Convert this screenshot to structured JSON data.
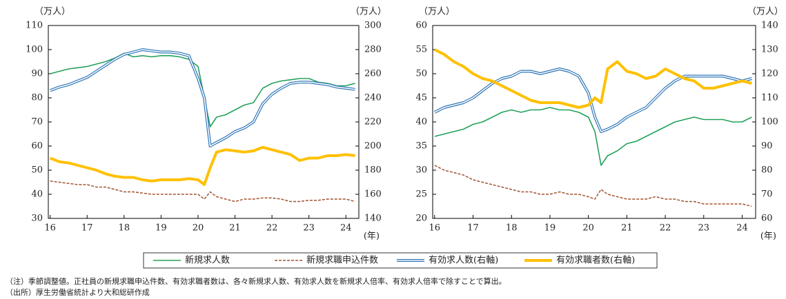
{
  "chart_data": [
    {
      "type": "line",
      "y_unit": "（万人）",
      "y2_unit": "（万人）",
      "x_unit": "(年)",
      "x": [
        16,
        16.25,
        16.5,
        16.75,
        17,
        17.25,
        17.5,
        17.75,
        18,
        18.25,
        18.5,
        18.75,
        19,
        19.25,
        19.5,
        19.75,
        20,
        20.17,
        20.33,
        20.5,
        20.75,
        21,
        21.25,
        21.5,
        21.75,
        22,
        22.25,
        22.5,
        22.75,
        23,
        23.25,
        23.5,
        23.75,
        24,
        24.25
      ],
      "xlim": [
        15.95,
        24.35
      ],
      "xticks": [
        16,
        17,
        18,
        19,
        20,
        21,
        22,
        23,
        24
      ],
      "ylim": [
        30,
        110
      ],
      "yticks": [
        30,
        40,
        50,
        60,
        70,
        80,
        90,
        100,
        110
      ],
      "y2lim": [
        140,
        300
      ],
      "y2ticks": [
        140,
        160,
        180,
        200,
        220,
        240,
        260,
        280,
        300
      ],
      "series": [
        {
          "name": "新規求人数",
          "color": "#23a05a",
          "line_style": "solid",
          "values": [
            90,
            91,
            92,
            92.5,
            93,
            94,
            95,
            96.5,
            98.5,
            97,
            97.5,
            97,
            97.5,
            97.5,
            97,
            96,
            93,
            80,
            68,
            72,
            73,
            75,
            77,
            78,
            84,
            86,
            87,
            87.5,
            88,
            88,
            86.5,
            86,
            85,
            85,
            86
          ]
        },
        {
          "name": "新規求職申込件数",
          "color": "#a0522d",
          "line_style": "dashed",
          "values": [
            45.5,
            45,
            44.5,
            44,
            44,
            43,
            43,
            42,
            41,
            41,
            40.5,
            40,
            40,
            40,
            40,
            40,
            40,
            38,
            41,
            39,
            38,
            37,
            38,
            38,
            38.5,
            38.5,
            38,
            37,
            37,
            37.5,
            37.5,
            38,
            38,
            38,
            37
          ]
        },
        {
          "name": "有効求人数(右軸)",
          "color": "#2e75b6",
          "line_style": "double",
          "axis": "y2",
          "values": [
            246,
            249,
            251,
            254,
            257,
            262,
            267,
            272,
            276,
            278,
            280,
            279,
            278,
            278,
            277,
            275,
            256,
            240,
            200,
            203,
            207,
            212,
            215,
            220,
            235,
            243,
            248,
            252,
            253,
            253,
            252,
            251,
            249,
            248,
            247
          ]
        },
        {
          "name": "有効求職者数(右軸)",
          "color": "#ffc000",
          "line_style": "thick",
          "axis": "y2",
          "values": [
            190,
            187,
            186,
            184,
            182,
            180,
            177,
            175,
            174,
            174,
            172,
            171,
            172,
            172,
            172,
            173,
            172,
            168,
            182,
            195,
            197,
            196,
            195,
            196,
            199,
            197,
            195,
            193,
            188,
            190,
            190,
            192,
            192,
            193,
            192
          ]
        }
      ]
    },
    {
      "type": "line",
      "y_unit": "（万人）",
      "y2_unit": "（万人）",
      "x_unit": "(年)",
      "x": [
        16,
        16.25,
        16.5,
        16.75,
        17,
        17.25,
        17.5,
        17.75,
        18,
        18.25,
        18.5,
        18.75,
        19,
        19.25,
        19.5,
        19.75,
        20,
        20.17,
        20.33,
        20.5,
        20.75,
        21,
        21.25,
        21.5,
        21.75,
        22,
        22.25,
        22.5,
        22.75,
        23,
        23.25,
        23.5,
        23.75,
        24,
        24.25
      ],
      "xlim": [
        15.95,
        24.35
      ],
      "xticks": [
        16,
        17,
        18,
        19,
        20,
        21,
        22,
        23,
        24
      ],
      "ylim": [
        20,
        60
      ],
      "yticks": [
        20,
        25,
        30,
        35,
        40,
        45,
        50,
        55,
        60
      ],
      "y2lim": [
        60,
        140
      ],
      "y2ticks": [
        60,
        70,
        80,
        90,
        100,
        110,
        120,
        130,
        140
      ],
      "series": [
        {
          "color": "#23a05a",
          "line_style": "solid",
          "values": [
            37,
            37.5,
            38,
            38.5,
            39.5,
            40,
            41,
            42,
            42.5,
            42,
            42.5,
            42.5,
            43,
            42.5,
            42.5,
            42,
            41,
            38,
            31,
            33,
            34,
            35.5,
            36,
            37,
            38,
            39,
            40,
            40.5,
            41,
            40.5,
            40.5,
            40.5,
            40,
            40,
            41
          ]
        },
        {
          "color": "#a0522d",
          "line_style": "dashed",
          "values": [
            31,
            30,
            29.5,
            29,
            28,
            27.5,
            27,
            26.5,
            26,
            25.5,
            25.5,
            25,
            25,
            25.5,
            25,
            25,
            24.5,
            24,
            26,
            25,
            24.5,
            24,
            24,
            24,
            24.5,
            24,
            24,
            23.5,
            23.5,
            23,
            23,
            23,
            23,
            23,
            22.5
          ]
        },
        {
          "color": "#2e75b6",
          "line_style": "double",
          "axis": "y2",
          "values": [
            104,
            106,
            107,
            108,
            110,
            113,
            116,
            118,
            119,
            121,
            121,
            120,
            121,
            122,
            121,
            119,
            112,
            102,
            96,
            97,
            99,
            102,
            104,
            106,
            110,
            114,
            117,
            119,
            119,
            119,
            119,
            119,
            118,
            117,
            118
          ]
        },
        {
          "color": "#ffc000",
          "line_style": "thick",
          "axis": "y2",
          "values": [
            130,
            128,
            125,
            123,
            120,
            118,
            117,
            115,
            113,
            111,
            109,
            108,
            108,
            108,
            107,
            106,
            107,
            110,
            108,
            122,
            125,
            121,
            120,
            118,
            119,
            122,
            120,
            118,
            117,
            114,
            114,
            115,
            116,
            117,
            116
          ]
        }
      ]
    }
  ],
  "notes": [
    "（注）季節調整値。正社員の新規求職申込件数、有効求職者数は、各々新規求人数、有効求人数を新規求人倍率、有効求人倍率で除すことで算出。",
    "（出所）厚生労働省統計より大和総研作成"
  ]
}
